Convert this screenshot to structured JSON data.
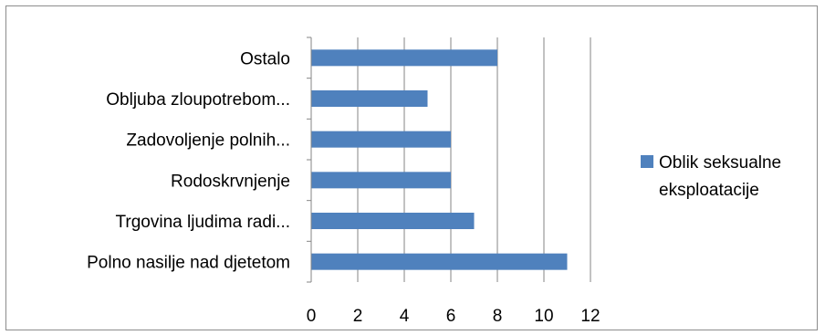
{
  "chart_data": {
    "type": "bar",
    "orientation": "horizontal",
    "categories": [
      "Ostalo",
      "Obljuba zloupotrebom...",
      "Zadovoljenje polnih...",
      "Rodoskrvnjenje",
      "Trgovina ljudima radi...",
      "Polno nasilje nad djetetom"
    ],
    "series": [
      {
        "name": "Oblik seksualne eksploatacije",
        "values": [
          8,
          5,
          6,
          6,
          7,
          11
        ]
      }
    ],
    "xlim": [
      0,
      12
    ],
    "x_ticks": [
      "0",
      "2",
      "4",
      "6",
      "8",
      "10",
      "12"
    ],
    "grid": "vertical",
    "legend_position": "right",
    "legend_lines": [
      "Oblik seksualne",
      "eksploatacije"
    ],
    "colors": {
      "bar": "#4f81bd",
      "grid": "#868686",
      "axis": "#868686"
    }
  }
}
